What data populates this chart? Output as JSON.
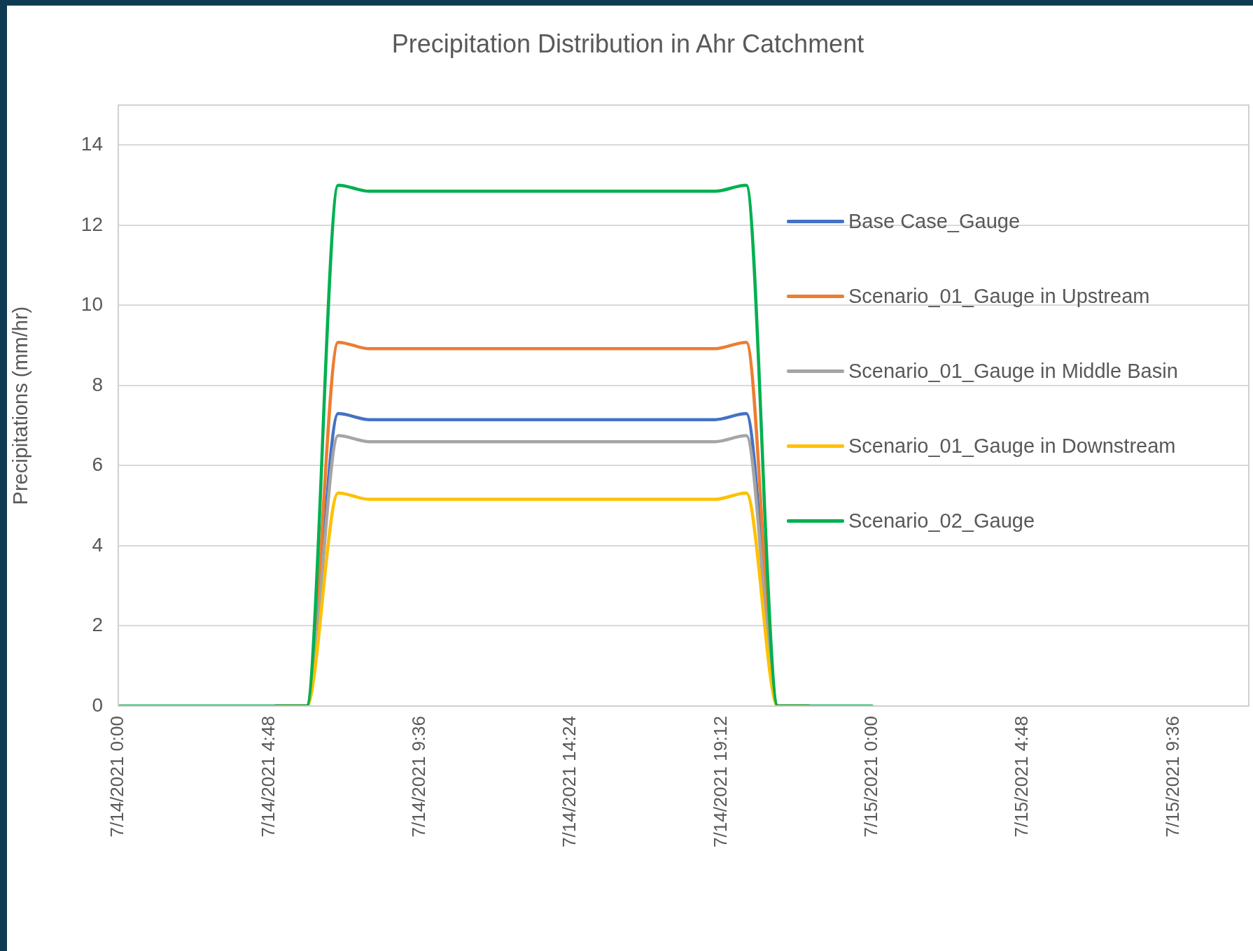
{
  "chart_data": {
    "type": "line",
    "title": "Precipitation Distribution in Ahr Catchment",
    "ylabel": "Precipitations (mm/hr)",
    "x": [
      "2021-07-14T00:00",
      "2021-07-14T01:00",
      "2021-07-14T02:00",
      "2021-07-14T03:00",
      "2021-07-14T04:00",
      "2021-07-14T05:00",
      "2021-07-14T06:00",
      "2021-07-14T07:00",
      "2021-07-14T08:00",
      "2021-07-14T09:00",
      "2021-07-14T10:00",
      "2021-07-14T11:00",
      "2021-07-14T12:00",
      "2021-07-14T13:00",
      "2021-07-14T14:00",
      "2021-07-14T15:00",
      "2021-07-14T16:00",
      "2021-07-14T17:00",
      "2021-07-14T18:00",
      "2021-07-14T19:00",
      "2021-07-14T20:00",
      "2021-07-14T21:00",
      "2021-07-14T22:00",
      "2021-07-14T23:00",
      "2021-07-15T00:00"
    ],
    "series": [
      {
        "name": "Base Case_Gauge",
        "color": "#4472c4",
        "values": [
          null,
          null,
          null,
          null,
          null,
          0,
          0,
          7.3,
          7.15,
          7.15,
          7.15,
          7.15,
          7.15,
          7.15,
          7.15,
          7.15,
          7.15,
          7.15,
          7.15,
          7.15,
          7.3,
          0,
          0,
          null,
          null
        ]
      },
      {
        "name": "Scenario_01_Gauge in Upstream",
        "color": "#ed7d31",
        "values": [
          null,
          null,
          null,
          null,
          null,
          0,
          0,
          9.08,
          8.92,
          8.92,
          8.92,
          8.92,
          8.92,
          8.92,
          8.92,
          8.92,
          8.92,
          8.92,
          8.92,
          8.92,
          9.08,
          0,
          0,
          null,
          null
        ]
      },
      {
        "name": "Scenario_01_Gauge in Middle Basin",
        "color": "#a5a5a5",
        "values": [
          null,
          null,
          null,
          null,
          null,
          0,
          0,
          6.75,
          6.6,
          6.6,
          6.6,
          6.6,
          6.6,
          6.6,
          6.6,
          6.6,
          6.6,
          6.6,
          6.6,
          6.6,
          6.75,
          0,
          0,
          null,
          null
        ]
      },
      {
        "name": "Scenario_01_Gauge in Downstream",
        "color": "#ffc000",
        "values": [
          null,
          null,
          null,
          null,
          null,
          0,
          0,
          5.32,
          5.16,
          5.16,
          5.16,
          5.16,
          5.16,
          5.16,
          5.16,
          5.16,
          5.16,
          5.16,
          5.16,
          5.16,
          5.32,
          0,
          0,
          null,
          null
        ]
      },
      {
        "name": "Scenario_02_Gauge",
        "color": "#00b050",
        "values": [
          0,
          0,
          0,
          0,
          0,
          0,
          0,
          13.0,
          12.85,
          12.85,
          12.85,
          12.85,
          12.85,
          12.85,
          12.85,
          12.85,
          12.85,
          12.85,
          12.85,
          12.85,
          13.0,
          0,
          0,
          0,
          0
        ]
      }
    ],
    "xlim": [
      "2021-07-14T00:00",
      "2021-07-15T12:00"
    ],
    "xticks": [
      {
        "value": "2021-07-14T00:00",
        "label": "7/14/2021 0:00"
      },
      {
        "value": "2021-07-14T04:48",
        "label": "7/14/2021 4:48"
      },
      {
        "value": "2021-07-14T09:36",
        "label": "7/14/2021 9:36"
      },
      {
        "value": "2021-07-14T14:24",
        "label": "7/14/2021 14:24"
      },
      {
        "value": "2021-07-14T19:12",
        "label": "7/14/2021 19:12"
      },
      {
        "value": "2021-07-15T00:00",
        "label": "7/15/2021 0:00"
      },
      {
        "value": "2021-07-15T04:48",
        "label": "7/15/2021 4:48"
      },
      {
        "value": "2021-07-15T09:36",
        "label": "7/15/2021 9:36"
      }
    ],
    "ylim": [
      0,
      15
    ],
    "yticks": [
      0,
      2,
      4,
      6,
      8,
      10,
      12,
      14
    ],
    "grid": "y",
    "legend": "right",
    "line_style": "solid"
  }
}
